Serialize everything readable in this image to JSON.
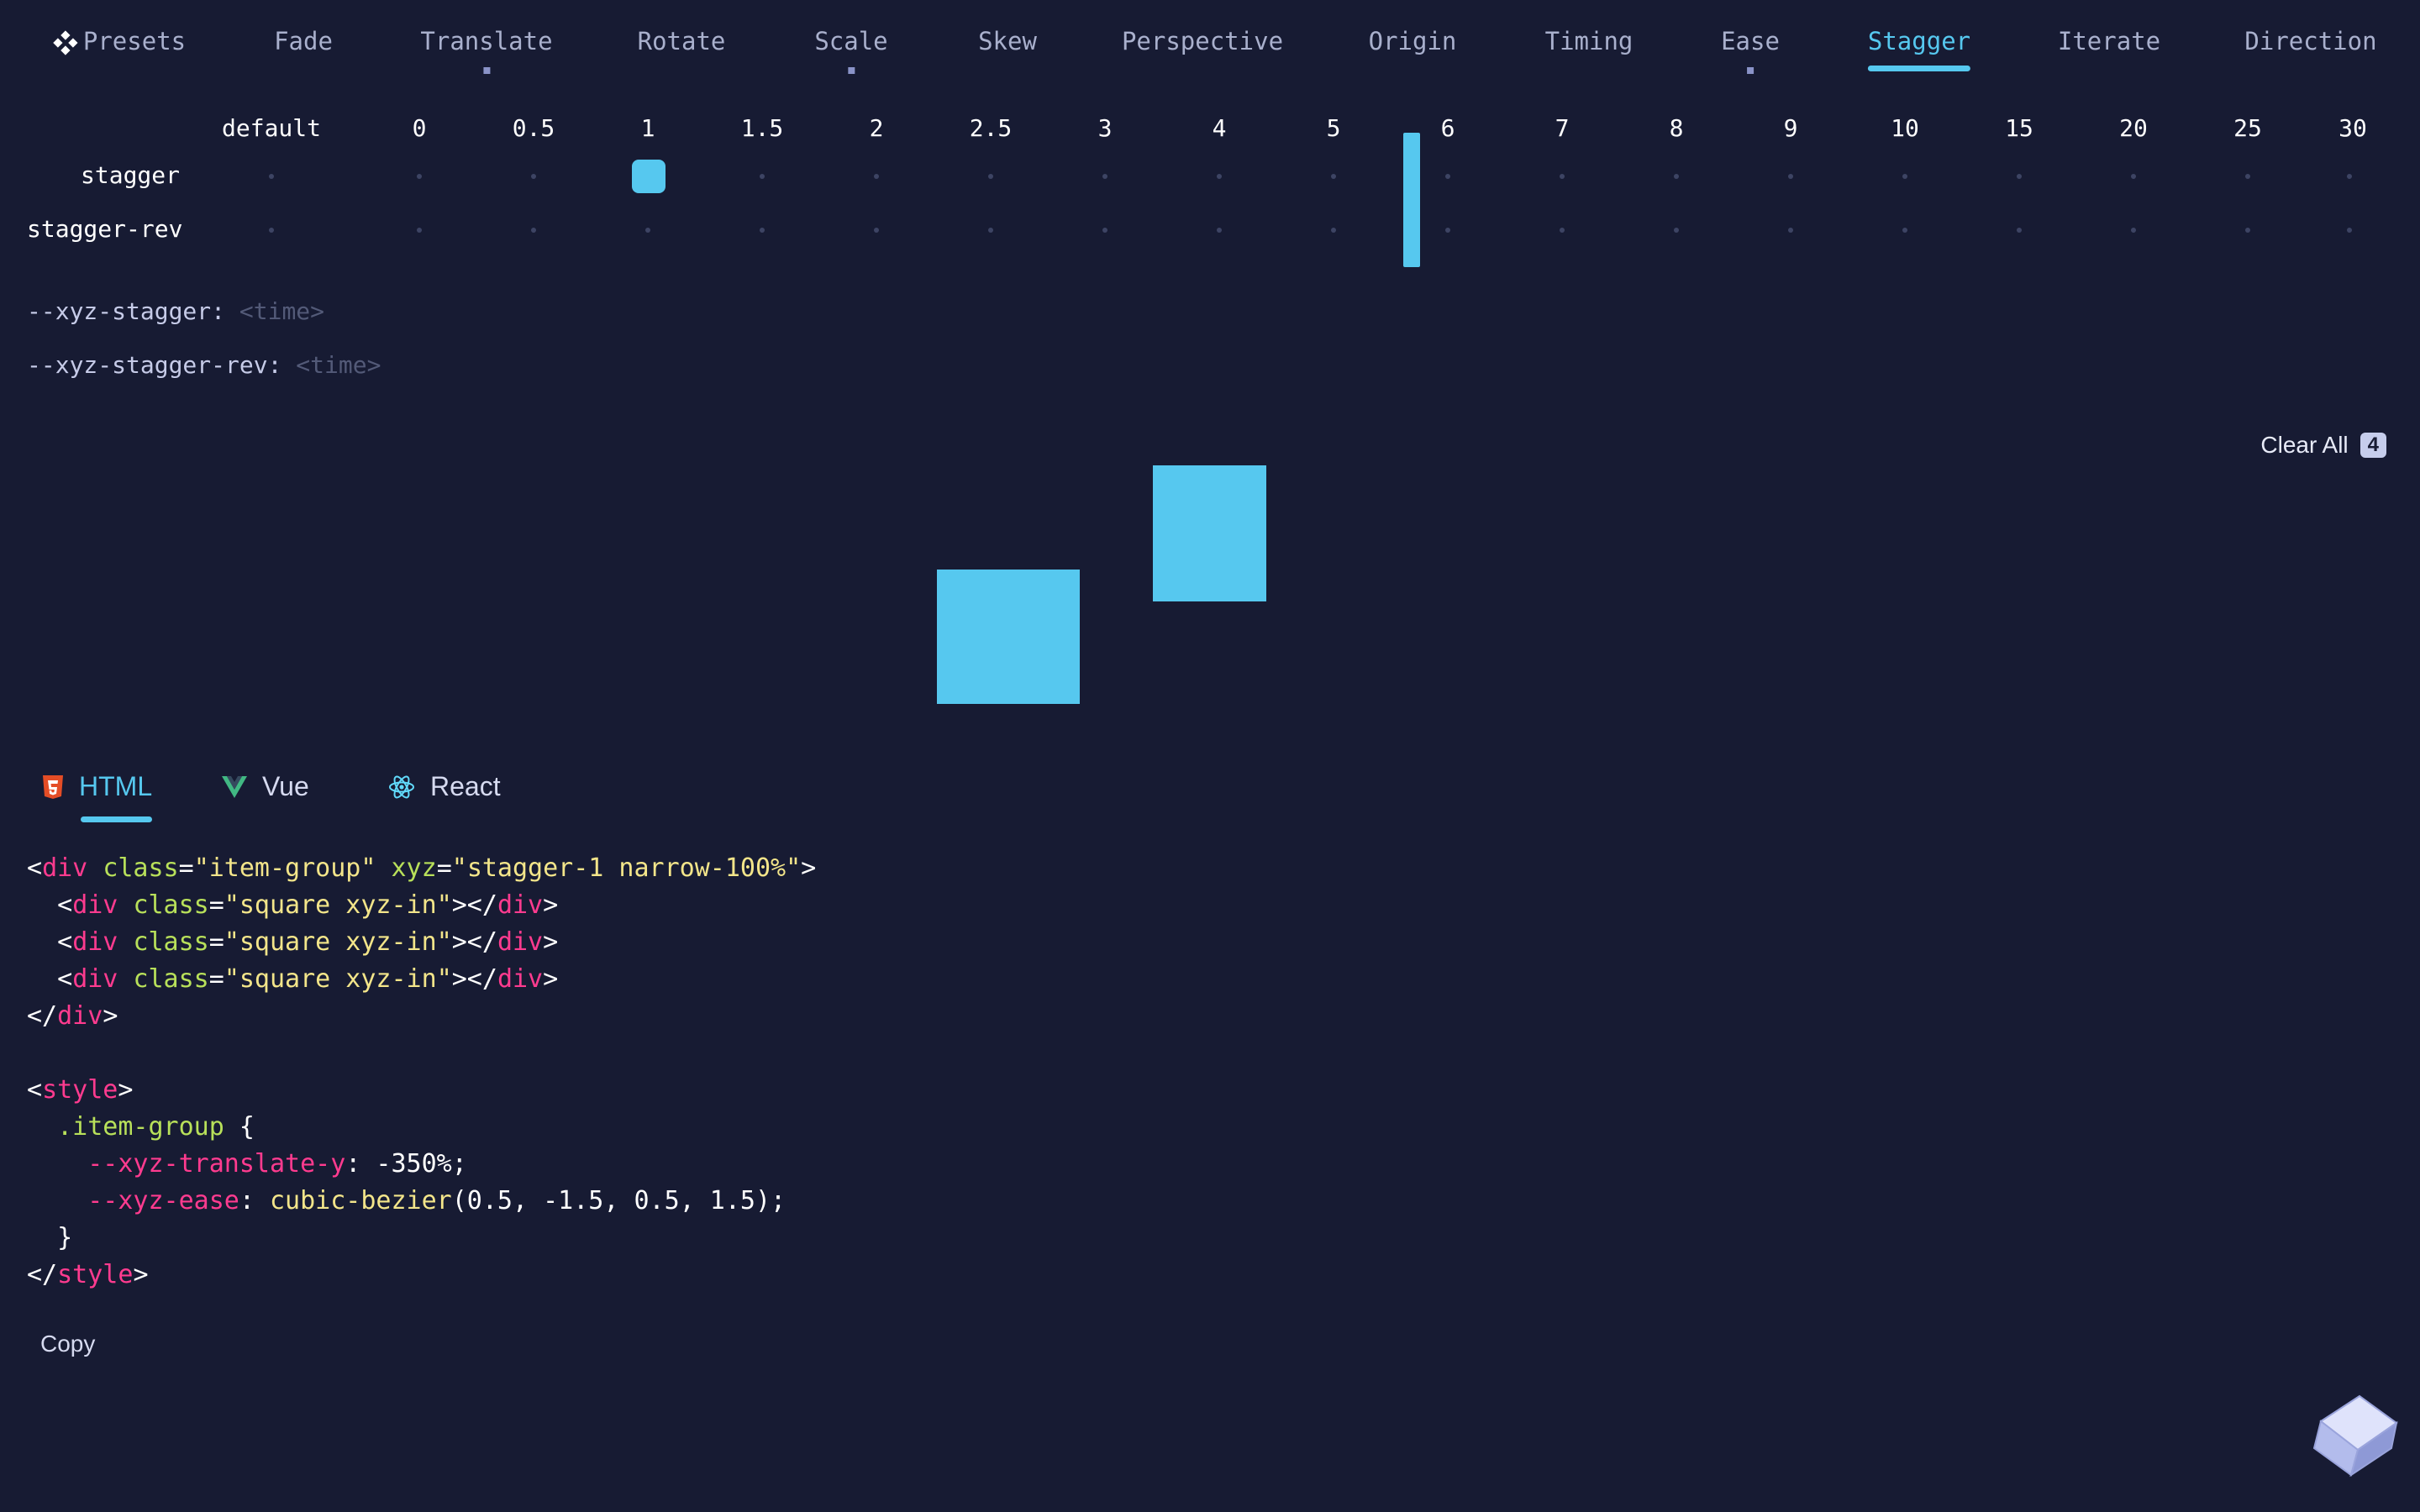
{
  "nav": {
    "presets": "Presets",
    "tabs": [
      "Fade",
      "Translate",
      "Rotate",
      "Scale",
      "Skew",
      "Perspective",
      "Origin",
      "Timing",
      "Ease",
      "Stagger",
      "Iterate",
      "Direction"
    ],
    "active": "Stagger"
  },
  "grid": {
    "columns": [
      "default",
      "0",
      "0.5",
      "1",
      "1.5",
      "2",
      "2.5",
      "3",
      "4",
      "5",
      "6",
      "7",
      "8",
      "9",
      "10",
      "15",
      "20",
      "25",
      "30"
    ],
    "rows": [
      "stagger",
      "stagger-rev"
    ],
    "selected": {
      "row": "stagger",
      "column": "1"
    }
  },
  "properties": [
    {
      "name": "--xyz-stagger:",
      "value": "<time>"
    },
    {
      "name": "--xyz-stagger-rev:",
      "value": "<time>"
    }
  ],
  "clear_all": {
    "label": "Clear All",
    "count": "4"
  },
  "code_tabs": {
    "tabs": [
      "HTML",
      "Vue",
      "React"
    ],
    "active": "HTML"
  },
  "code": {
    "line1": {
      "tag": "div",
      "attr1": "class",
      "val1": "item-group",
      "attr2": "xyz",
      "val2": "stagger-1 narrow-100%"
    },
    "item": {
      "tag": "div",
      "attr": "class",
      "val": "square xyz-in"
    },
    "close_tag": "div",
    "style_tag": "style",
    "selector": ".item-group",
    "decl1": {
      "prop": "--xyz-translate-y",
      "value": "-350%"
    },
    "decl2": {
      "prop": "--xyz-ease",
      "fn": "cubic-bezier",
      "args": "(0.5, -1.5, 0.5, 1.5)"
    }
  },
  "copy_label": "Copy",
  "colors": {
    "background": "#171b33",
    "accent": "#56c8ef",
    "tag": "#ff3b8f",
    "attr": "#b8e05a",
    "string": "#f3e58a"
  },
  "icons": [
    "presets-icon",
    "html5-icon",
    "vue-icon",
    "react-icon",
    "cube-logo-icon"
  ]
}
